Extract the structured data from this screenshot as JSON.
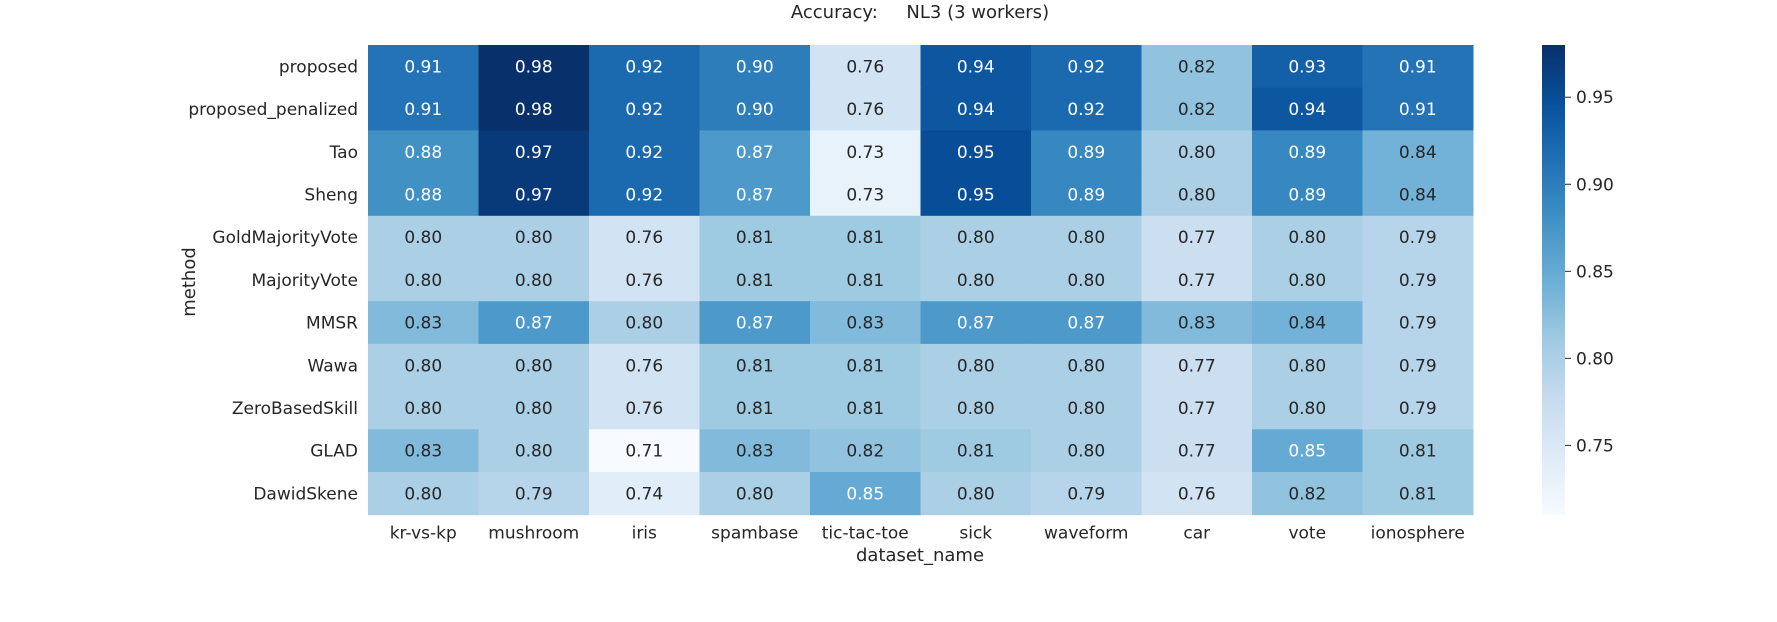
{
  "chart_data": {
    "type": "heatmap",
    "title": "Accuracy:     NL3 (3 workers)",
    "xlabel": "dataset_name",
    "ylabel": "method",
    "x_categories": [
      "kr-vs-kp",
      "mushroom",
      "iris",
      "spambase",
      "tic-tac-toe",
      "sick",
      "waveform",
      "car",
      "vote",
      "ionosphere"
    ],
    "y_categories": [
      "proposed",
      "proposed_penalized",
      "Tao",
      "Sheng",
      "GoldMajorityVote",
      "MajorityVote",
      "MMSR",
      "Wawa",
      "ZeroBasedSkill",
      "GLAD",
      "DawidSkene"
    ],
    "values": [
      [
        0.91,
        0.98,
        0.92,
        0.9,
        0.76,
        0.94,
        0.92,
        0.82,
        0.93,
        0.91
      ],
      [
        0.91,
        0.98,
        0.92,
        0.9,
        0.76,
        0.94,
        0.92,
        0.82,
        0.94,
        0.91
      ],
      [
        0.88,
        0.97,
        0.92,
        0.87,
        0.73,
        0.95,
        0.89,
        0.8,
        0.89,
        0.84
      ],
      [
        0.88,
        0.97,
        0.92,
        0.87,
        0.73,
        0.95,
        0.89,
        0.8,
        0.89,
        0.84
      ],
      [
        0.8,
        0.8,
        0.76,
        0.81,
        0.81,
        0.8,
        0.8,
        0.77,
        0.8,
        0.79
      ],
      [
        0.8,
        0.8,
        0.76,
        0.81,
        0.81,
        0.8,
        0.8,
        0.77,
        0.8,
        0.79
      ],
      [
        0.83,
        0.87,
        0.8,
        0.87,
        0.83,
        0.87,
        0.87,
        0.83,
        0.84,
        0.79
      ],
      [
        0.8,
        0.8,
        0.76,
        0.81,
        0.81,
        0.8,
        0.8,
        0.77,
        0.8,
        0.79
      ],
      [
        0.8,
        0.8,
        0.76,
        0.81,
        0.81,
        0.8,
        0.8,
        0.77,
        0.8,
        0.79
      ],
      [
        0.83,
        0.8,
        0.71,
        0.83,
        0.82,
        0.81,
        0.8,
        0.77,
        0.85,
        0.81
      ],
      [
        0.8,
        0.79,
        0.74,
        0.8,
        0.85,
        0.8,
        0.79,
        0.76,
        0.82,
        0.81
      ]
    ],
    "colormap": "Blues",
    "colorbar": {
      "vmin": 0.71,
      "vmax": 0.98,
      "ticks": [
        0.75,
        0.8,
        0.85,
        0.9,
        0.95
      ],
      "tick_labels": [
        "0.75",
        "0.80",
        "0.85",
        "0.90",
        "0.95"
      ]
    },
    "grid": false,
    "legend": "colorbar-right"
  }
}
